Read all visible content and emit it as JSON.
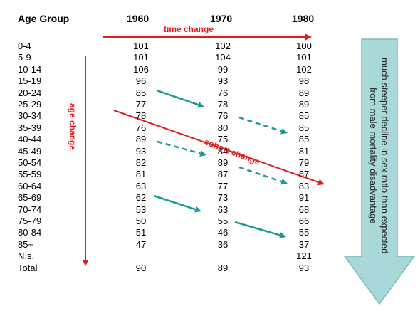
{
  "headers": {
    "age_group": "Age Group",
    "y1960": "1960",
    "y1970": "1970",
    "y1980": "1980"
  },
  "rows": [
    {
      "age": "0-4",
      "v1960": "101",
      "v1970": "102",
      "v1980": "100"
    },
    {
      "age": "5-9",
      "v1960": "101",
      "v1970": "104",
      "v1980": "101"
    },
    {
      "age": "10-14",
      "v1960": "106",
      "v1970": "99",
      "v1980": "102"
    },
    {
      "age": "15-19",
      "v1960": "96",
      "v1970": "93",
      "v1980": "98"
    },
    {
      "age": "20-24",
      "v1960": "85",
      "v1970": "76",
      "v1980": "89"
    },
    {
      "age": "25-29",
      "v1960": "77",
      "v1970": "78",
      "v1980": "89"
    },
    {
      "age": "30-34",
      "v1960": "78",
      "v1970": "76",
      "v1980": "85"
    },
    {
      "age": "35-39",
      "v1960": "76",
      "v1970": "80",
      "v1980": "85"
    },
    {
      "age": "40-44",
      "v1960": "89",
      "v1970": "75",
      "v1980": "85"
    },
    {
      "age": "45-49",
      "v1960": "93",
      "v1970": "84",
      "v1980": "81"
    },
    {
      "age": "50-54",
      "v1960": "82",
      "v1970": "89",
      "v1980": "79"
    },
    {
      "age": "55-59",
      "v1960": "81",
      "v1970": "87",
      "v1980": "87"
    },
    {
      "age": "60-64",
      "v1960": "63",
      "v1970": "77",
      "v1980": "83"
    },
    {
      "age": "65-69",
      "v1960": "62",
      "v1970": "73",
      "v1980": "91"
    },
    {
      "age": "70-74",
      "v1960": "53",
      "v1970": "63",
      "v1980": "68"
    },
    {
      "age": "75-79",
      "v1960": "50",
      "v1970": "55",
      "v1980": "66"
    },
    {
      "age": "80-84",
      "v1960": "51",
      "v1970": "46",
      "v1980": "55"
    },
    {
      "age": "85+",
      "v1960": "47",
      "v1970": "36",
      "v1980": "37"
    },
    {
      "age": "N.s.",
      "v1960": "",
      "v1970": "",
      "v1980": "121"
    },
    {
      "age": "Total",
      "v1960": "90",
      "v1970": "89",
      "v1980": "93"
    }
  ],
  "labels": {
    "time_change": "time change",
    "age_change": "age change",
    "cohort_change": "cohort change",
    "big_arrow_text": "much steeper decline in sex ratio than expected\nfrom male mortality disadvantage"
  },
  "colors": {
    "red": "#e21d1d",
    "teal": "#1a9a96",
    "arrow_fill": "#a9d8d8",
    "arrow_stroke": "#7fb9bb"
  }
}
